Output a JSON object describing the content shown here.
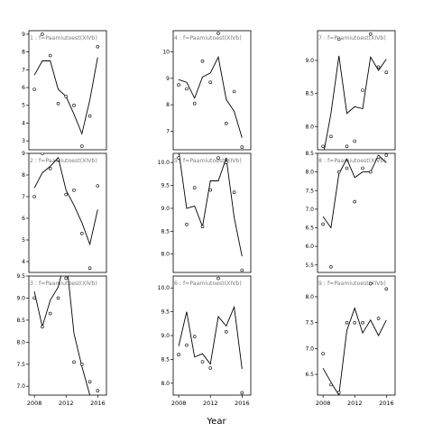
{
  "chart_data": {
    "type": "scatter",
    "xlabel": "Year",
    "panels": [
      {
        "strip": "1 : f=Paamiutoest(XIVb)",
        "row": 0,
        "col": 0,
        "ylim": [
          2.5,
          9.2
        ],
        "yticks": [
          3,
          4,
          5,
          6,
          7,
          8,
          9
        ],
        "yticks_shown": true,
        "xticks_shown": false,
        "points": [
          [
            2008,
            5.9
          ],
          [
            2009,
            9.0
          ],
          [
            2010,
            7.8
          ],
          [
            2011,
            5.1
          ],
          [
            2012,
            5.5
          ],
          [
            2013,
            5.0
          ],
          [
            2014,
            2.7
          ],
          [
            2015,
            4.4
          ],
          [
            2016,
            8.3
          ]
        ],
        "line": [
          [
            2008,
            6.7
          ],
          [
            2009,
            7.5
          ],
          [
            2010,
            7.5
          ],
          [
            2011,
            5.9
          ],
          [
            2012,
            5.5
          ],
          [
            2013,
            4.5
          ],
          [
            2014,
            3.4
          ],
          [
            2015,
            5.3
          ],
          [
            2016,
            7.7
          ]
        ]
      },
      {
        "strip": "4 : f=Paamiutoest(XIVb)",
        "row": 0,
        "col": 1,
        "ylim": [
          6.3,
          10.8
        ],
        "yticks": [
          7,
          8,
          9,
          10
        ],
        "yticks_shown": true,
        "xticks_shown": false,
        "points": [
          [
            2008,
            8.75
          ],
          [
            2009,
            8.6
          ],
          [
            2010,
            8.05
          ],
          [
            2011,
            9.65
          ],
          [
            2012,
            8.85
          ],
          [
            2013,
            10.7
          ],
          [
            2014,
            7.3
          ],
          [
            2015,
            8.5
          ],
          [
            2016,
            6.4
          ]
        ],
        "line": [
          [
            2008,
            8.95
          ],
          [
            2009,
            8.85
          ],
          [
            2010,
            8.25
          ],
          [
            2011,
            9.05
          ],
          [
            2012,
            9.2
          ],
          [
            2013,
            9.8
          ],
          [
            2014,
            8.2
          ],
          [
            2015,
            7.75
          ],
          [
            2016,
            6.75
          ]
        ]
      },
      {
        "strip": "7 : f=Paamiutoest(XIVb)",
        "row": 0,
        "col": 2,
        "ylim": [
          7.65,
          9.45
        ],
        "yticks": [
          8.0,
          8.5,
          9.0
        ],
        "yticks_shown": true,
        "xticks_shown": false,
        "points": [
          [
            2008,
            7.7
          ],
          [
            2009,
            7.85
          ],
          [
            2010,
            9.32
          ],
          [
            2011,
            7.7
          ],
          [
            2012,
            7.78
          ],
          [
            2013,
            8.55
          ],
          [
            2014,
            9.4
          ],
          [
            2015,
            8.9
          ],
          [
            2016,
            8.82
          ]
        ],
        "line": [
          [
            2008,
            7.55
          ],
          [
            2009,
            8.2
          ],
          [
            2010,
            9.07
          ],
          [
            2011,
            8.2
          ],
          [
            2012,
            8.3
          ],
          [
            2013,
            8.27
          ],
          [
            2014,
            9.05
          ],
          [
            2015,
            8.85
          ],
          [
            2016,
            9.02
          ]
        ]
      },
      {
        "strip": "2 : f=Paamiutoest(XIVb)",
        "row": 1,
        "col": 0,
        "ylim": [
          3.5,
          9.0
        ],
        "yticks": [
          4,
          5,
          6,
          7,
          8,
          9
        ],
        "yticks_shown": true,
        "xticks_shown": false,
        "points": [
          [
            2008,
            7.0
          ],
          [
            2009,
            9.0
          ],
          [
            2010,
            8.3
          ],
          [
            2011,
            8.7
          ],
          [
            2012,
            7.1
          ],
          [
            2013,
            7.3
          ],
          [
            2014,
            5.3
          ],
          [
            2015,
            3.7
          ],
          [
            2016,
            7.5
          ]
        ],
        "line": [
          [
            2008,
            7.4
          ],
          [
            2009,
            8.1
          ],
          [
            2010,
            8.4
          ],
          [
            2011,
            8.8
          ],
          [
            2012,
            7.3
          ],
          [
            2013,
            6.6
          ],
          [
            2014,
            5.8
          ],
          [
            2015,
            4.8
          ],
          [
            2016,
            6.4
          ]
        ]
      },
      {
        "strip": "5 : f=Paamiutoest(XIVb)",
        "row": 1,
        "col": 1,
        "ylim": [
          7.6,
          10.2
        ],
        "yticks": [
          8.0,
          8.5,
          9.0,
          9.5,
          10.0
        ],
        "yticks_shown": true,
        "xticks_shown": false,
        "points": [
          [
            2008,
            10.1
          ],
          [
            2009,
            8.65
          ],
          [
            2010,
            9.45
          ],
          [
            2011,
            8.6
          ],
          [
            2012,
            9.4
          ],
          [
            2013,
            10.1
          ],
          [
            2014,
            10.0
          ],
          [
            2015,
            9.35
          ],
          [
            2016,
            7.65
          ]
        ],
        "line": [
          [
            2008,
            10.25
          ],
          [
            2009,
            9.0
          ],
          [
            2010,
            9.05
          ],
          [
            2011,
            8.6
          ],
          [
            2012,
            9.6
          ],
          [
            2013,
            9.6
          ],
          [
            2014,
            10.1
          ],
          [
            2015,
            8.8
          ],
          [
            2016,
            7.95
          ]
        ]
      },
      {
        "strip": "8 : f=Paamiutoest(XIVb)",
        "row": 1,
        "col": 2,
        "ylim": [
          5.3,
          8.5
        ],
        "yticks": [
          5.5,
          6.0,
          6.5,
          7.0,
          7.5,
          8.0,
          8.5
        ],
        "yticks_shown": true,
        "xticks_shown": false,
        "points": [
          [
            2008,
            6.6
          ],
          [
            2009,
            5.45
          ],
          [
            2010,
            8.0
          ],
          [
            2011,
            8.1
          ],
          [
            2012,
            7.2
          ],
          [
            2013,
            8.1
          ],
          [
            2014,
            8.0
          ],
          [
            2015,
            8.4
          ],
          [
            2016,
            8.45
          ]
        ],
        "line": [
          [
            2008,
            6.8
          ],
          [
            2009,
            6.5
          ],
          [
            2010,
            7.95
          ],
          [
            2011,
            8.35
          ],
          [
            2012,
            7.85
          ],
          [
            2013,
            8.0
          ],
          [
            2014,
            8.0
          ],
          [
            2015,
            8.45
          ],
          [
            2016,
            8.25
          ]
        ]
      },
      {
        "strip": "3 : f=Paamiutoest(XIVb)",
        "row": 2,
        "col": 0,
        "ylim": [
          6.8,
          9.5
        ],
        "yticks": [
          7.0,
          7.5,
          8.0,
          8.5,
          9.0,
          9.5
        ],
        "yticks_shown": true,
        "xticks_shown": true,
        "points": [
          [
            2008,
            9.0
          ],
          [
            2009,
            8.35
          ],
          [
            2010,
            8.65
          ],
          [
            2011,
            9.0
          ],
          [
            2012,
            9.45
          ],
          [
            2013,
            7.55
          ],
          [
            2014,
            7.5
          ],
          [
            2015,
            7.1
          ],
          [
            2016,
            6.9
          ]
        ],
        "line": [
          [
            2008,
            9.15
          ],
          [
            2009,
            8.35
          ],
          [
            2010,
            8.95
          ],
          [
            2011,
            9.25
          ],
          [
            2012,
            9.95
          ],
          [
            2013,
            8.2
          ],
          [
            2014,
            7.45
          ],
          [
            2015,
            6.8
          ],
          [
            2016,
            6.6
          ]
        ]
      },
      {
        "strip": "6 : f=Paamiutoest(XIVb)",
        "row": 2,
        "col": 1,
        "ylim": [
          7.75,
          10.25
        ],
        "yticks": [
          8.0,
          8.5,
          9.0,
          9.5,
          10.0
        ],
        "yticks_shown": true,
        "xticks_shown": true,
        "points": [
          [
            2008,
            8.6
          ],
          [
            2009,
            8.8
          ],
          [
            2010,
            8.98
          ],
          [
            2011,
            8.45
          ],
          [
            2012,
            8.32
          ],
          [
            2013,
            10.2
          ],
          [
            2014,
            9.08
          ],
          [
            2015,
            10.28
          ],
          [
            2016,
            7.8
          ]
        ],
        "line": [
          [
            2008,
            8.78
          ],
          [
            2009,
            9.5
          ],
          [
            2010,
            8.55
          ],
          [
            2011,
            8.62
          ],
          [
            2012,
            8.4
          ],
          [
            2013,
            9.4
          ],
          [
            2014,
            9.2
          ],
          [
            2015,
            9.6
          ],
          [
            2016,
            8.3
          ]
        ]
      },
      {
        "strip": "9 : f=Paamiutoest(XIVb)",
        "row": 2,
        "col": 2,
        "ylim": [
          6.1,
          8.4
        ],
        "yticks": [
          6.5,
          7.0,
          7.5,
          8.0
        ],
        "yticks_shown": true,
        "xticks_shown": true,
        "points": [
          [
            2008,
            6.9
          ],
          [
            2009,
            6.3
          ],
          [
            2010,
            6.15
          ],
          [
            2011,
            7.5
          ],
          [
            2012,
            7.5
          ],
          [
            2013,
            7.5
          ],
          [
            2014,
            8.25
          ],
          [
            2015,
            7.58
          ],
          [
            2016,
            8.15
          ]
        ],
        "line": [
          [
            2008,
            6.62
          ],
          [
            2009,
            6.35
          ],
          [
            2010,
            6.1
          ],
          [
            2011,
            7.35
          ],
          [
            2012,
            7.78
          ],
          [
            2013,
            7.3
          ],
          [
            2014,
            7.55
          ],
          [
            2015,
            7.25
          ],
          [
            2016,
            7.55
          ]
        ]
      }
    ],
    "xlim": [
      2007.3,
      2017.1
    ],
    "xticks": [
      2008,
      2012,
      2016
    ],
    "grid": false,
    "legend": false
  }
}
